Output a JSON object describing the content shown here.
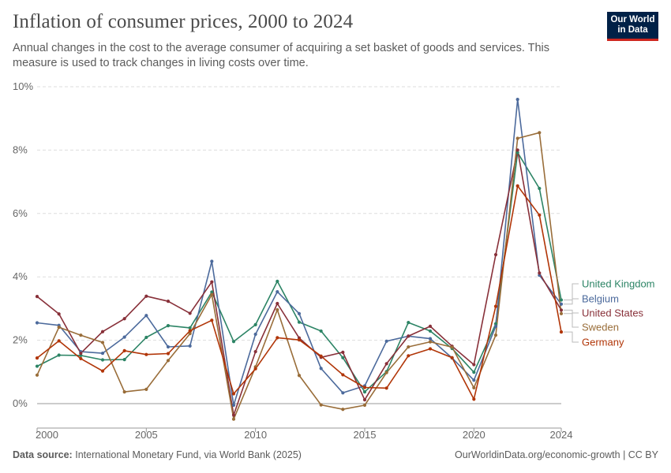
{
  "header": {
    "title": "Inflation of consumer prices, 2000 to 2024",
    "subtitle": "Annual changes in the cost to the average consumer of acquiring a set basket of goods and services. This measure is used to track changes in living costs over time.",
    "logo_line1": "Our World",
    "logo_line2": "in Data"
  },
  "footer": {
    "source_label": "Data source:",
    "source_text": "International Monetary Fund, via World Bank (2025)",
    "url": "OurWorldinData.org/economic-growth | CC BY"
  },
  "chart_data": {
    "type": "line",
    "title": "Inflation of consumer prices, 2000 to 2024",
    "x": [
      2000,
      2001,
      2002,
      2003,
      2004,
      2005,
      2006,
      2007,
      2008,
      2009,
      2010,
      2011,
      2012,
      2013,
      2014,
      2015,
      2016,
      2017,
      2018,
      2019,
      2020,
      2021,
      2022,
      2023,
      2024
    ],
    "xticks": [
      "2000",
      "2005",
      "2010",
      "2015",
      "2020",
      "2024"
    ],
    "xtick_values": [
      2000,
      2005,
      2010,
      2015,
      2020,
      2024
    ],
    "ylim": [
      -0.6,
      10
    ],
    "yticks": [
      0,
      2,
      4,
      6,
      8,
      10
    ],
    "ytick_labels": [
      "0%",
      "2%",
      "4%",
      "6%",
      "8%",
      "10%"
    ],
    "grid": "horizontal dashed",
    "legend_placement": "right, end of lines",
    "series": [
      {
        "name": "United Kingdom",
        "color": "#2c8465",
        "values": [
          1.18,
          1.53,
          1.52,
          1.38,
          1.39,
          2.09,
          2.46,
          2.39,
          3.52,
          1.96,
          2.49,
          3.86,
          2.57,
          2.29,
          1.45,
          0.37,
          1.01,
          2.56,
          2.29,
          1.74,
          0.99,
          2.52,
          7.92,
          6.79,
          3.27
        ]
      },
      {
        "name": "Belgium",
        "color": "#4c6a9c",
        "values": [
          2.55,
          2.47,
          1.64,
          1.59,
          2.1,
          2.78,
          1.79,
          1.82,
          4.49,
          -0.05,
          2.19,
          3.53,
          2.84,
          1.11,
          0.34,
          0.56,
          1.97,
          2.13,
          2.05,
          1.44,
          0.74,
          2.44,
          9.6,
          4.05,
          3.14
        ]
      },
      {
        "name": "United States",
        "color": "#883039",
        "values": [
          3.38,
          2.83,
          1.59,
          2.27,
          2.68,
          3.39,
          3.23,
          2.85,
          3.84,
          -0.36,
          1.64,
          3.16,
          2.07,
          1.46,
          1.62,
          0.12,
          1.26,
          2.13,
          2.44,
          1.81,
          1.23,
          4.7,
          8.0,
          4.12,
          2.95
        ]
      },
      {
        "name": "Sweden",
        "color": "#996d39",
        "values": [
          0.9,
          2.41,
          2.16,
          1.93,
          0.37,
          0.45,
          1.36,
          2.21,
          3.44,
          -0.49,
          1.16,
          2.96,
          0.89,
          -0.04,
          -0.18,
          -0.05,
          0.98,
          1.79,
          1.95,
          1.78,
          0.5,
          2.16,
          8.37,
          8.55,
          2.84
        ]
      },
      {
        "name": "Germany",
        "color": "#b13507",
        "values": [
          1.44,
          1.98,
          1.42,
          1.03,
          1.67,
          1.55,
          1.58,
          2.3,
          2.63,
          0.31,
          1.1,
          2.08,
          2.01,
          1.5,
          0.91,
          0.51,
          0.49,
          1.51,
          1.73,
          1.45,
          0.14,
          3.07,
          6.87,
          5.95,
          2.26
        ]
      }
    ]
  }
}
